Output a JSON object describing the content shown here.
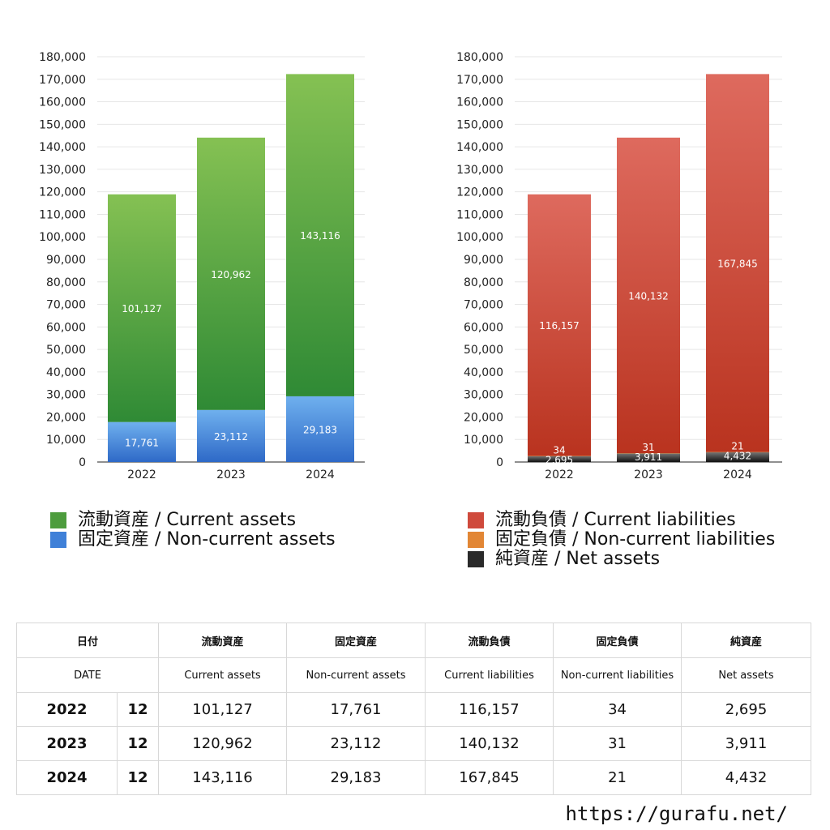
{
  "chart_data": [
    {
      "type": "bar",
      "stacked": true,
      "categories": [
        "2022",
        "2023",
        "2024"
      ],
      "ylim": [
        0,
        180000
      ],
      "yticks": [
        "0",
        "10,000",
        "20,000",
        "30,000",
        "40,000",
        "50,000",
        "60,000",
        "70,000",
        "80,000",
        "90,000",
        "100,000",
        "110,000",
        "120,000",
        "130,000",
        "140,000",
        "150,000",
        "160,000",
        "170,000",
        "180,000"
      ],
      "series": [
        {
          "name": "固定資産 / Non-current assets",
          "values": [
            17761,
            23112,
            29183
          ],
          "labels": [
            "17,761",
            "23,112",
            "29,183"
          ],
          "color_top": "#6fb0ee",
          "color_bottom": "#2e69c7"
        },
        {
          "name": "流動資産 / Current assets",
          "values": [
            101127,
            120962,
            143116
          ],
          "labels": [
            "101,127",
            "120,962",
            "143,116"
          ],
          "color_top": "#85c153",
          "color_bottom": "#2f8a35"
        }
      ],
      "grid": true,
      "legend": "bottom"
    },
    {
      "type": "bar",
      "stacked": true,
      "categories": [
        "2022",
        "2023",
        "2024"
      ],
      "ylim": [
        0,
        180000
      ],
      "yticks": [
        "0",
        "10,000",
        "20,000",
        "30,000",
        "40,000",
        "50,000",
        "60,000",
        "70,000",
        "80,000",
        "90,000",
        "100,000",
        "110,000",
        "120,000",
        "130,000",
        "140,000",
        "150,000",
        "160,000",
        "170,000",
        "180,000"
      ],
      "series": [
        {
          "name": "純資産 / Net assets",
          "values": [
            2695,
            3911,
            4432
          ],
          "labels": [
            "2,695",
            "3,911",
            "4,432"
          ],
          "color_top": "#777777",
          "color_bottom": "#111111"
        },
        {
          "name": "固定負債 / Non-current liabilities",
          "values": [
            34,
            31,
            21
          ],
          "labels": [
            "34",
            "31",
            "21"
          ],
          "color_top": "#f0a050",
          "color_bottom": "#d9772a"
        },
        {
          "name": "流動負債 / Current liabilities",
          "values": [
            116157,
            140132,
            167845
          ],
          "labels": [
            "116,157",
            "140,132",
            "167,845"
          ],
          "color_top": "#de6a5e",
          "color_bottom": "#b9331f"
        }
      ],
      "grid": true,
      "legend": "bottom"
    }
  ],
  "legend_left": [
    {
      "label": "流動資産 / Current assets",
      "color": "#4d9c3d"
    },
    {
      "label": "固定資産 / Non-current assets",
      "color": "#3f80d8"
    }
  ],
  "legend_right": [
    {
      "label": "流動負債 / Current liabilities",
      "color": "#cf4a3c"
    },
    {
      "label": "固定負債 / Non-current liabilities",
      "color": "#e28635"
    },
    {
      "label": "純資産 / Net assets",
      "color": "#2a2a2a"
    }
  ],
  "table": {
    "header_jp": {
      "date": "日付",
      "c1": "流動資産",
      "c2": "固定資産",
      "c3": "流動負債",
      "c4": "固定負債",
      "c5": "純資産"
    },
    "header_en": {
      "date": "DATE",
      "c1": "Current assets",
      "c2": "Non-current assets",
      "c3": "Current liabilities",
      "c4": "Non-current liabilities",
      "c5": "Net assets"
    },
    "rows": [
      {
        "year": "2022",
        "month": "12",
        "c1": "101,127",
        "c2": "17,761",
        "c3": "116,157",
        "c4": "34",
        "c5": "2,695"
      },
      {
        "year": "2023",
        "month": "12",
        "c1": "120,962",
        "c2": "23,112",
        "c3": "140,132",
        "c4": "31",
        "c5": "3,911"
      },
      {
        "year": "2024",
        "month": "12",
        "c1": "143,116",
        "c2": "29,183",
        "c3": "167,845",
        "c4": "21",
        "c5": "4,432"
      }
    ]
  },
  "site_url": "https://gurafu.net/"
}
